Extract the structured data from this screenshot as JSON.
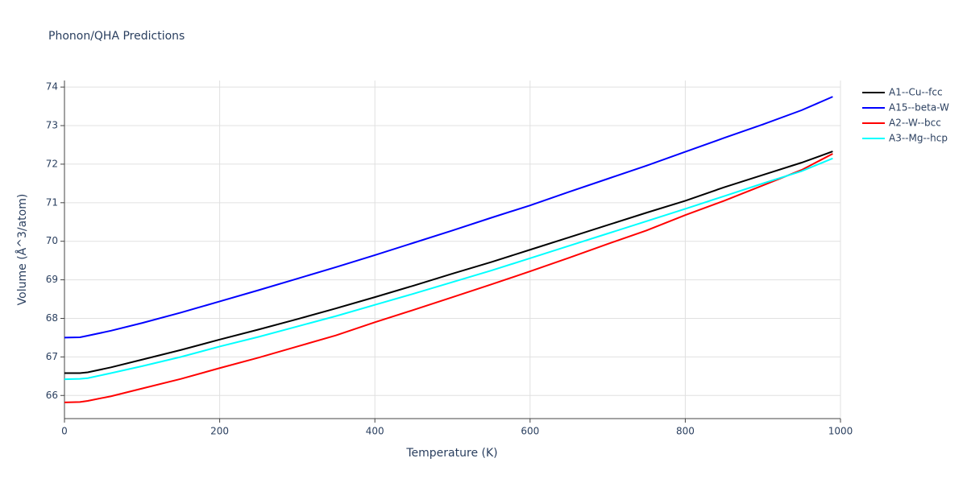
{
  "chart_data": {
    "type": "line",
    "title": "Phonon/QHA Predictions",
    "x_label": "Temperature (K)",
    "y_label": "Volume (Å^3/atom)",
    "x": [
      0,
      20,
      30,
      60,
      100,
      150,
      200,
      250,
      300,
      350,
      400,
      450,
      500,
      550,
      600,
      650,
      700,
      750,
      800,
      850,
      900,
      950,
      990
    ],
    "series": [
      {
        "name": "A1--Cu--fcc",
        "color": "#000000",
        "values": [
          66.58,
          66.58,
          66.6,
          66.73,
          66.93,
          67.18,
          67.45,
          67.71,
          67.98,
          68.26,
          68.55,
          68.85,
          69.16,
          69.46,
          69.78,
          70.1,
          70.42,
          70.74,
          71.05,
          71.4,
          71.72,
          72.04,
          72.33
        ]
      },
      {
        "name": "A15--beta-W",
        "color": "#0000ff",
        "values": [
          67.5,
          67.51,
          67.55,
          67.68,
          67.88,
          68.15,
          68.44,
          68.73,
          69.03,
          69.33,
          69.64,
          69.96,
          70.28,
          70.61,
          70.93,
          71.28,
          71.62,
          71.96,
          72.32,
          72.68,
          73.03,
          73.4,
          73.75
        ]
      },
      {
        "name": "A2--W--bcc",
        "color": "#ff0000",
        "values": [
          65.82,
          65.83,
          65.86,
          65.98,
          66.18,
          66.43,
          66.71,
          66.98,
          67.27,
          67.56,
          67.9,
          68.22,
          68.55,
          68.88,
          69.22,
          69.57,
          69.93,
          70.28,
          70.68,
          71.05,
          71.45,
          71.85,
          72.27
        ]
      },
      {
        "name": "A3--Mg--hcp",
        "color": "#00ffff",
        "values": [
          66.42,
          66.43,
          66.45,
          66.58,
          66.76,
          67.0,
          67.27,
          67.52,
          67.79,
          68.06,
          68.35,
          68.64,
          68.94,
          69.24,
          69.56,
          69.88,
          70.2,
          70.52,
          70.84,
          71.17,
          71.5,
          71.82,
          72.15
        ]
      }
    ],
    "xlim": [
      0,
      1000
    ],
    "xticks": [
      0,
      200,
      400,
      600,
      800,
      1000
    ],
    "ylim": [
      65.4,
      74.17
    ],
    "yticks": [
      66,
      67,
      68,
      69,
      70,
      71,
      72,
      73,
      74
    ],
    "grid": true,
    "legend": "right"
  }
}
